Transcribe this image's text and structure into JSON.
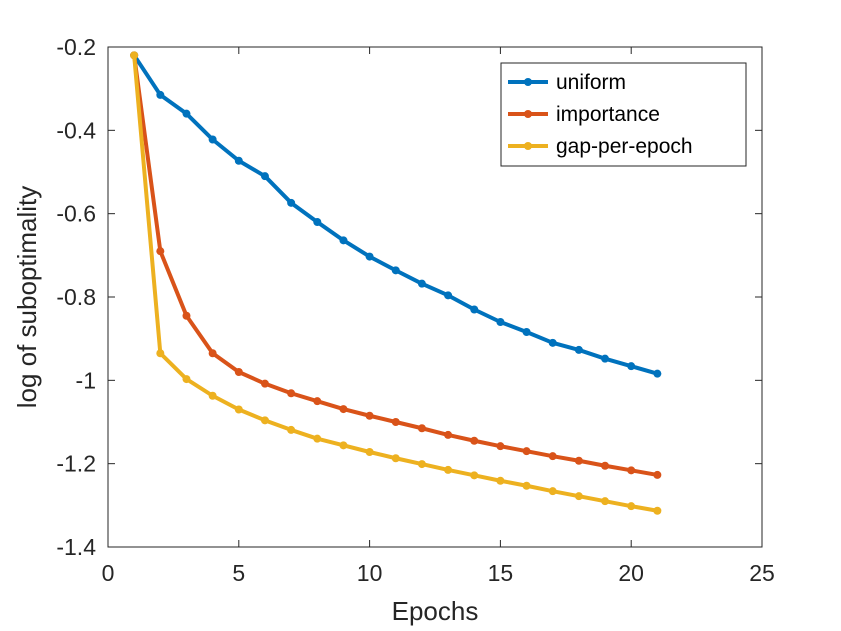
{
  "chart_data": {
    "type": "line",
    "title": "",
    "xlabel": "Epochs",
    "ylabel": "log of suboptimality",
    "xlim": [
      0,
      25
    ],
    "ylim": [
      -1.4,
      -0.2
    ],
    "xticks": [
      0,
      5,
      10,
      15,
      20,
      25
    ],
    "xtick_labels": [
      "0",
      "5",
      "10",
      "15",
      "20",
      "25"
    ],
    "yticks": [
      -1.4,
      -1.2,
      -1,
      -0.8,
      -0.6,
      -0.4,
      -0.2
    ],
    "ytick_labels": [
      "-1.4",
      "-1.2",
      "-1",
      "-0.8",
      "-0.6",
      "-0.4",
      "-0.2"
    ],
    "grid": false,
    "legend_position": "top-right",
    "x": [
      1,
      2,
      3,
      4,
      5,
      6,
      7,
      8,
      9,
      10,
      11,
      12,
      13,
      14,
      15,
      16,
      17,
      18,
      19,
      20,
      21
    ],
    "series": [
      {
        "name": "uniform",
        "color": "#0072bd",
        "values": [
          -0.22,
          -0.315,
          -0.36,
          -0.422,
          -0.473,
          -0.51,
          -0.574,
          -0.62,
          -0.664,
          -0.703,
          -0.736,
          -0.768,
          -0.796,
          -0.83,
          -0.86,
          -0.884,
          -0.91,
          -0.927,
          -0.948,
          -0.966,
          -0.984
        ]
      },
      {
        "name": "importance",
        "color": "#d95319",
        "values": [
          -0.22,
          -0.69,
          -0.845,
          -0.935,
          -0.98,
          -1.008,
          -1.031,
          -1.05,
          -1.069,
          -1.085,
          -1.1,
          -1.115,
          -1.131,
          -1.145,
          -1.158,
          -1.17,
          -1.182,
          -1.193,
          -1.205,
          -1.216,
          -1.227
        ]
      },
      {
        "name": "gap-per-epoch",
        "color": "#edb120",
        "values": [
          -0.22,
          -0.935,
          -0.997,
          -1.037,
          -1.07,
          -1.096,
          -1.119,
          -1.14,
          -1.156,
          -1.172,
          -1.187,
          -1.201,
          -1.215,
          -1.228,
          -1.241,
          -1.253,
          -1.266,
          -1.278,
          -1.29,
          -1.302,
          -1.313
        ]
      }
    ]
  }
}
